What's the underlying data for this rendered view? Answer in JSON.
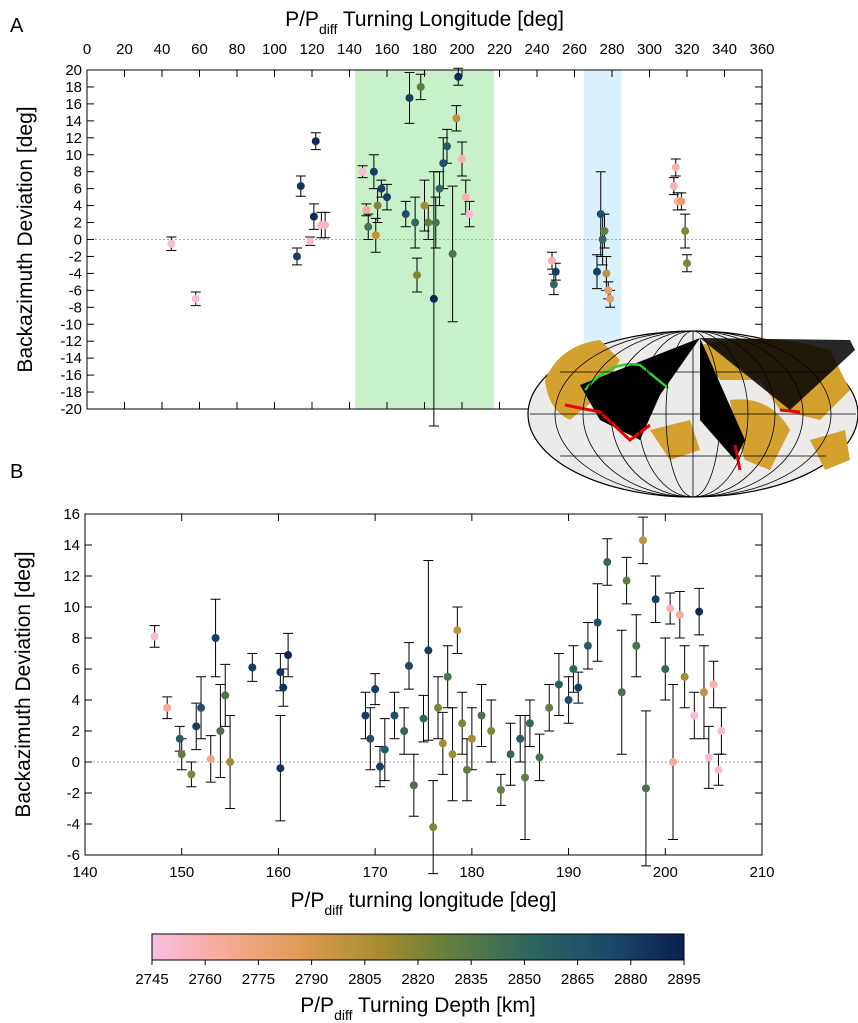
{
  "chart_data": [
    {
      "type": "scatter",
      "panel_label": "A",
      "xlabel": [
        "P/P",
        "diff",
        " Turning Longitude [deg]"
      ],
      "ylabel": "Backazimuth Deviation [deg]",
      "xlim": [
        0,
        360
      ],
      "xticks": [
        0,
        20,
        40,
        60,
        80,
        100,
        120,
        140,
        160,
        180,
        200,
        220,
        240,
        260,
        280,
        300,
        320,
        340,
        360
      ],
      "ylim": [
        -20,
        20
      ],
      "yticks": [
        -20,
        -18,
        -16,
        -14,
        -12,
        -10,
        -8,
        -6,
        -4,
        -2,
        0,
        2,
        4,
        6,
        8,
        10,
        12,
        14,
        16,
        18,
        20
      ],
      "hline": 0,
      "bands": [
        {
          "x": [
            143,
            217
          ],
          "color": "#c9f1c9"
        },
        {
          "x": [
            265,
            285
          ],
          "color": "#d9f1fc"
        }
      ],
      "x": [
        45,
        58,
        112,
        114,
        119,
        121,
        122,
        125,
        127,
        147,
        149,
        150,
        153,
        154,
        155,
        157,
        160,
        170,
        172,
        175,
        176,
        178,
        180,
        182,
        185,
        186,
        188,
        190,
        192,
        195,
        197,
        198,
        200,
        202,
        204,
        248,
        249,
        250,
        272,
        274,
        275,
        277,
        278,
        279,
        276,
        313,
        314,
        315,
        317,
        319,
        320
      ],
      "values": [
        -0.5,
        -7,
        -2,
        6.3,
        -0.2,
        2.7,
        11.6,
        1.7,
        1.7,
        8,
        3.5,
        1.5,
        8,
        0.5,
        4,
        6,
        5,
        3,
        16.7,
        2,
        -4.2,
        18,
        4,
        2,
        -7,
        2,
        6,
        9,
        11,
        -1.7,
        14.3,
        19.2,
        9.5,
        5,
        3,
        -2.5,
        -5.3,
        -3.8,
        -3.8,
        3,
        0,
        -4,
        -6,
        -7,
        1,
        6.3,
        8.5,
        4.5,
        4.5,
        1,
        -2.8
      ],
      "errors": [
        0.8,
        0.8,
        1,
        1.2,
        0.5,
        1.5,
        1,
        1.5,
        1.5,
        0.7,
        0.7,
        1.5,
        2,
        2,
        2,
        1,
        1.5,
        1.5,
        3,
        3,
        2,
        1.5,
        3,
        2,
        15,
        3,
        2,
        3,
        2,
        8,
        1.5,
        1,
        2,
        2,
        1.5,
        1,
        1.2,
        1,
        2,
        5,
        3,
        2,
        1,
        1,
        2,
        1,
        1,
        1,
        1,
        2,
        1
      ],
      "depths": [
        2750,
        2750,
        2880,
        2885,
        2750,
        2890,
        2890,
        2755,
        2755,
        2750,
        2765,
        2840,
        2880,
        2800,
        2820,
        2880,
        2880,
        2870,
        2880,
        2850,
        2820,
        2830,
        2810,
        2830,
        2890,
        2840,
        2850,
        2870,
        2860,
        2840,
        2800,
        2890,
        2760,
        2760,
        2750,
        2760,
        2850,
        2880,
        2880,
        2870,
        2850,
        2800,
        2780,
        2780,
        2830,
        2760,
        2760,
        2760,
        2780,
        2820,
        2820
      ]
    },
    {
      "type": "scatter",
      "panel_label": "B",
      "xlabel": [
        "P/P",
        "diff",
        " turning longitude [deg]"
      ],
      "ylabel": "Backazimuth Deviation [deg]",
      "xlim": [
        140,
        210
      ],
      "xticks": [
        140,
        150,
        160,
        170,
        180,
        190,
        200,
        210
      ],
      "ylim": [
        -6,
        16
      ],
      "yticks": [
        -6,
        -4,
        -2,
        0,
        2,
        4,
        6,
        8,
        10,
        12,
        14,
        16
      ],
      "hline": 0,
      "x": [
        147.2,
        148.5,
        149.8,
        150,
        151,
        151.5,
        152,
        153,
        153.5,
        154,
        154.5,
        155,
        157.3,
        160.2,
        160.2,
        160.5,
        161,
        169,
        169.5,
        170,
        170.5,
        171,
        172,
        173,
        173.5,
        174,
        175,
        175.5,
        176,
        176.5,
        177,
        177.5,
        178,
        178.5,
        179,
        179.5,
        180,
        181,
        182,
        183,
        184,
        185,
        185.5,
        186,
        187,
        188,
        189,
        190,
        190.5,
        191,
        192,
        193,
        194,
        195.5,
        196,
        197,
        197.7,
        198,
        199,
        200,
        200.5,
        200.8,
        201.5,
        202,
        203,
        203.5,
        204,
        204.5,
        205,
        205.5,
        205.8
      ],
      "values": [
        8.1,
        3.5,
        1.5,
        0.5,
        -0.8,
        2.3,
        3.5,
        0.2,
        8,
        2,
        4.3,
        0,
        6.1,
        5.8,
        -0.4,
        4.8,
        6.9,
        3,
        1.5,
        4.7,
        -0.3,
        0.8,
        3,
        2,
        6.2,
        -1.5,
        2.8,
        7.2,
        -4.2,
        3.5,
        1.2,
        5.5,
        0.5,
        8.5,
        2.5,
        -0.5,
        1.5,
        3,
        2,
        -1.8,
        0.5,
        1.5,
        -1,
        2.5,
        0.3,
        3.5,
        5,
        4,
        6,
        4.8,
        7.5,
        9,
        12.9,
        4.5,
        11.7,
        7.5,
        14.3,
        -1.7,
        10.5,
        6,
        9.9,
        0,
        9.5,
        5.5,
        3,
        9.7,
        4.5,
        0.3,
        5,
        -0.5,
        2
      ],
      "errors": [
        0.7,
        0.7,
        0.8,
        1,
        0.8,
        1.5,
        2,
        1.5,
        2.5,
        3,
        2,
        3,
        0.9,
        1.2,
        3.4,
        1.2,
        1.4,
        1.5,
        2,
        1,
        1.3,
        2,
        1.5,
        1.5,
        1.5,
        2,
        1.5,
        5.8,
        3,
        2,
        2,
        2,
        3,
        1.5,
        2,
        2,
        2,
        2,
        2,
        1,
        2,
        1.5,
        4,
        1.5,
        1.5,
        1.5,
        2,
        1.5,
        1.5,
        1,
        1.5,
        2.5,
        1.5,
        4,
        1.5,
        2,
        1.5,
        5,
        1.5,
        2,
        1,
        5,
        1.5,
        2,
        1.5,
        1.5,
        3,
        2,
        1.5,
        1,
        1.5
      ],
      "depths": [
        2750,
        2765,
        2860,
        2830,
        2820,
        2880,
        2870,
        2770,
        2880,
        2840,
        2840,
        2810,
        2880,
        2885,
        2885,
        2885,
        2890,
        2880,
        2870,
        2880,
        2880,
        2860,
        2870,
        2850,
        2875,
        2840,
        2850,
        2880,
        2820,
        2820,
        2810,
        2840,
        2810,
        2800,
        2820,
        2830,
        2810,
        2840,
        2820,
        2830,
        2850,
        2860,
        2830,
        2850,
        2840,
        2830,
        2860,
        2870,
        2850,
        2880,
        2860,
        2870,
        2850,
        2840,
        2830,
        2840,
        2800,
        2840,
        2880,
        2850,
        2760,
        2765,
        2765,
        2810,
        2750,
        2890,
        2800,
        2750,
        2760,
        2750,
        2750
      ]
    },
    {
      "type": "colorbar",
      "label": [
        "P/P",
        "diff",
        " Turning Depth [km]"
      ],
      "xlim": [
        2745,
        2895
      ],
      "xticks": [
        2745,
        2760,
        2775,
        2790,
        2805,
        2820,
        2835,
        2850,
        2865,
        2880,
        2895
      ],
      "colormap": [
        "#fbbfe4",
        "#f7a992",
        "#de9a52",
        "#a68c2f",
        "#5e7d40",
        "#2c6660",
        "#1b4a6c",
        "#0b1f4f"
      ]
    }
  ]
}
